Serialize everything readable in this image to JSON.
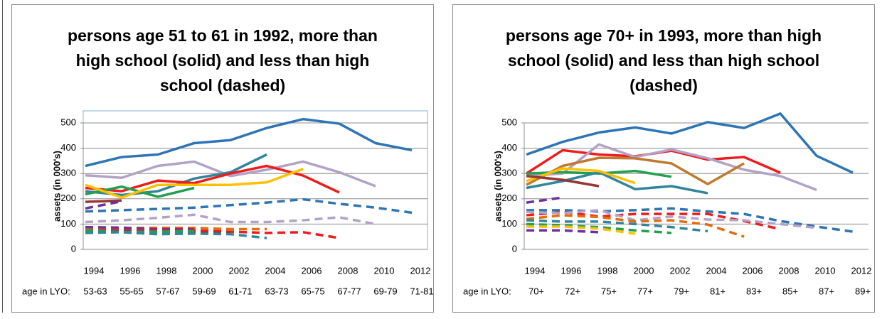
{
  "chart_data": [
    {
      "type": "line",
      "title": "persons age 51 to 61 in 1992, more than high school (solid) and less than high school (dashed)",
      "y_label": "assets (in 000's)",
      "categories": [
        "1994",
        "1996",
        "1998",
        "2000",
        "2002",
        "2004",
        "2006",
        "2008",
        "2010",
        "2012"
      ],
      "sub_label": "age in LYO:",
      "sub_categories": [
        "53-63",
        "55-65",
        "57-67",
        "59-69",
        "61-71",
        "63-73",
        "65-75",
        "67-77",
        "69-79",
        "71-81"
      ],
      "ylim": [
        0,
        500
      ],
      "yticks": [
        0,
        100,
        200,
        300,
        400,
        500
      ],
      "grid": true,
      "plot_frame": true,
      "series": [
        {
          "color": "#2e75b6",
          "dash": "solid",
          "values": [
            330,
            365,
            375,
            420,
            432,
            480,
            515,
            497,
            420,
            392
          ]
        },
        {
          "color": "#b3a2c7",
          "dash": "solid",
          "values": [
            293,
            283,
            330,
            347,
            290,
            315,
            347,
            305,
            250,
            null
          ]
        },
        {
          "color": "#31859c",
          "dash": "solid",
          "values": [
            230,
            215,
            230,
            280,
            305,
            375,
            null,
            null,
            null,
            null
          ]
        },
        {
          "color": "#ee1c1c",
          "dash": "solid",
          "values": [
            243,
            230,
            272,
            262,
            300,
            330,
            292,
            225,
            null,
            null
          ]
        },
        {
          "color": "#21a050",
          "dash": "solid",
          "values": [
            218,
            248,
            208,
            243,
            null,
            null,
            null,
            null,
            null,
            null
          ]
        },
        {
          "color": "#ffc000",
          "dash": "solid",
          "values": [
            255,
            205,
            255,
            255,
            255,
            265,
            318,
            null,
            null,
            null
          ]
        },
        {
          "color": "#953735",
          "dash": "solid",
          "values": [
            188,
            193,
            null,
            null,
            null,
            null,
            null,
            null,
            null,
            null
          ]
        },
        {
          "color": "#7030a0",
          "dash": "dashed",
          "values": [
            162,
            190,
            null,
            null,
            null,
            null,
            null,
            null,
            null,
            null
          ]
        },
        {
          "color": "#2e75b6",
          "dash": "dashed",
          "values": [
            150,
            155,
            160,
            165,
            175,
            185,
            198,
            180,
            165,
            145
          ]
        },
        {
          "color": "#b3a2c7",
          "dash": "dashed",
          "values": [
            108,
            115,
            125,
            137,
            108,
            108,
            115,
            127,
            100,
            null
          ]
        },
        {
          "color": "#e46c0a",
          "dash": "dashed",
          "values": [
            82,
            85,
            85,
            85,
            80,
            80,
            null,
            null,
            null,
            null
          ]
        },
        {
          "color": "#7030a0",
          "dash": "dashed",
          "values": [
            88,
            86,
            80,
            80,
            null,
            null,
            null,
            null,
            null,
            null
          ]
        },
        {
          "color": "#ee1c1c",
          "dash": "dashed",
          "values": [
            75,
            75,
            75,
            75,
            70,
            65,
            68,
            45,
            null,
            null
          ]
        },
        {
          "color": "#953735",
          "dash": "dashed",
          "values": [
            70,
            72,
            70,
            68,
            65,
            null,
            null,
            null,
            null,
            null
          ]
        },
        {
          "color": "#21a050",
          "dash": "dashed",
          "values": [
            75,
            68,
            70,
            72,
            null,
            null,
            null,
            null,
            null,
            null
          ]
        },
        {
          "color": "#31859c",
          "dash": "dashed",
          "values": [
            65,
            68,
            60,
            62,
            60,
            45,
            null,
            null,
            null,
            null
          ]
        }
      ]
    },
    {
      "type": "line",
      "title": "persons age 70+ in 1993, more than high school (solid) and less than high school (dashed)",
      "y_label": "assets (in 000's)",
      "categories": [
        "1994",
        "1996",
        "1998",
        "2000",
        "2002",
        "2004",
        "2006",
        "2008",
        "2010",
        "2012"
      ],
      "sub_label": "age in LYO:",
      "sub_categories": [
        "70+",
        "72+",
        "75+",
        "77+",
        "79+",
        "81+",
        "83+",
        "85+",
        "87+",
        "89+"
      ],
      "ylim": [
        0,
        500
      ],
      "yticks": [
        0,
        100,
        200,
        300,
        400,
        500
      ],
      "grid": true,
      "plot_frame": false,
      "series": [
        {
          "color": "#2e75b6",
          "dash": "solid",
          "values": [
            375,
            425,
            462,
            482,
            458,
            503,
            480,
            537,
            370,
            303
          ]
        },
        {
          "color": "#ee1c1c",
          "dash": "solid",
          "values": [
            300,
            392,
            375,
            368,
            390,
            355,
            365,
            303,
            null,
            null
          ]
        },
        {
          "color": "#b3a2c7",
          "dash": "solid",
          "values": [
            290,
            300,
            415,
            365,
            395,
            360,
            315,
            290,
            235,
            null
          ]
        },
        {
          "color": "#c07a30",
          "dash": "solid",
          "values": [
            255,
            330,
            362,
            360,
            340,
            258,
            340,
            null,
            null,
            null
          ]
        },
        {
          "color": "#21a050",
          "dash": "solid",
          "values": [
            300,
            305,
            300,
            310,
            287,
            null,
            null,
            null,
            null,
            null
          ]
        },
        {
          "color": "#31859c",
          "dash": "solid",
          "values": [
            243,
            270,
            305,
            238,
            250,
            222,
            null,
            null,
            null,
            null
          ]
        },
        {
          "color": "#ffc000",
          "dash": "solid",
          "values": [
            270,
            320,
            310,
            262,
            null,
            null,
            null,
            null,
            null,
            null
          ]
        },
        {
          "color": "#953735",
          "dash": "solid",
          "values": [
            290,
            275,
            250,
            null,
            null,
            null,
            null,
            null,
            null,
            null
          ]
        },
        {
          "color": "#7030a0",
          "dash": "dashed",
          "values": [
            185,
            205,
            null,
            null,
            null,
            null,
            null,
            null,
            null,
            null
          ]
        },
        {
          "color": "#2e75b6",
          "dash": "dashed",
          "values": [
            155,
            155,
            150,
            155,
            162,
            150,
            140,
            112,
            90,
            70
          ]
        },
        {
          "color": "#ee1c1c",
          "dash": "dashed",
          "values": [
            135,
            148,
            130,
            140,
            140,
            140,
            112,
            80,
            null,
            null
          ]
        },
        {
          "color": "#b3a2c7",
          "dash": "dashed",
          "values": [
            148,
            143,
            155,
            115,
            130,
            118,
            115,
            100,
            85,
            null
          ]
        },
        {
          "color": "#e46c0a",
          "dash": "dashed",
          "values": [
            120,
            135,
            128,
            110,
            115,
            98,
            50,
            null,
            null,
            null
          ]
        },
        {
          "color": "#31859c",
          "dash": "dashed",
          "values": [
            115,
            110,
            110,
            100,
            88,
            72,
            null,
            null,
            null,
            null
          ]
        },
        {
          "color": "#21a050",
          "dash": "dashed",
          "values": [
            100,
            95,
            88,
            75,
            65,
            null,
            null,
            null,
            null,
            null
          ]
        },
        {
          "color": "#ffc000",
          "dash": "dashed",
          "values": [
            90,
            90,
            82,
            62,
            null,
            null,
            null,
            null,
            null,
            null
          ]
        },
        {
          "color": "#7030a0",
          "dash": "dashed",
          "values": [
            75,
            75,
            68,
            null,
            null,
            null,
            null,
            null,
            null,
            null
          ]
        }
      ]
    }
  ]
}
